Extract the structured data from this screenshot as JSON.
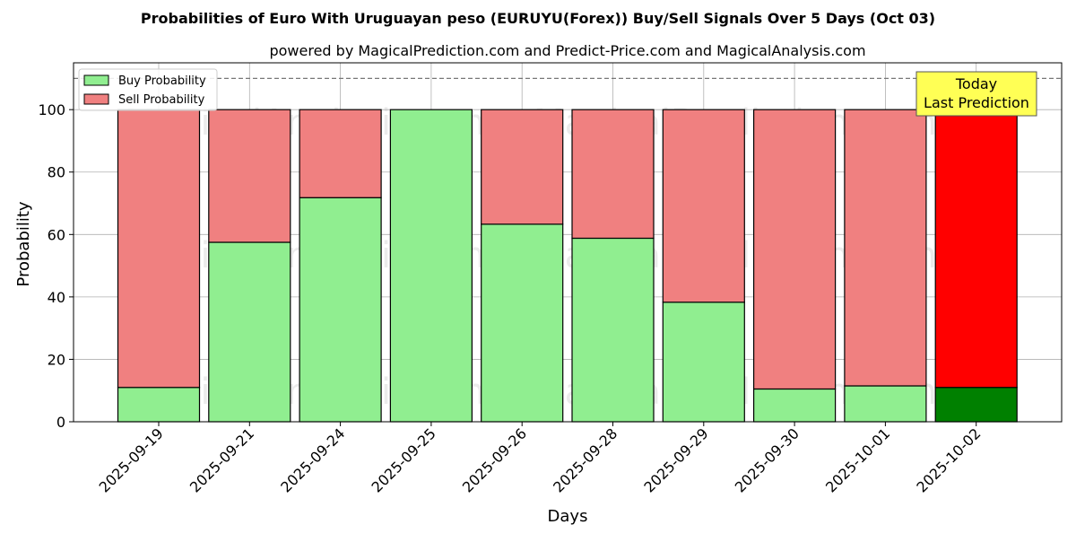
{
  "chart_data": {
    "type": "bar",
    "stacked": true,
    "title": "Probabilities of Euro With Uruguayan peso (EURUYU(Forex)) Buy/Sell Signals Over 5 Days (Oct 03)",
    "subtitle": "powered by MagicalPrediction.com and Predict-Price.com and MagicalAnalysis.com",
    "xlabel": "Days",
    "ylabel": "Probability",
    "ylim": [
      0,
      115
    ],
    "yticks": [
      0,
      20,
      40,
      60,
      80,
      100
    ],
    "grid": true,
    "legend_position": "top-left",
    "reference_line": 110,
    "categories": [
      "2025-09-19",
      "2025-09-21",
      "2025-09-24",
      "2025-09-25",
      "2025-09-26",
      "2025-09-28",
      "2025-09-29",
      "2025-09-30",
      "2025-10-01",
      "2025-10-02"
    ],
    "series": [
      {
        "name": "Buy Probability",
        "color": "#90ee90",
        "highlight_color": "#008000",
        "values": [
          11,
          57.5,
          71.8,
          100,
          63.3,
          58.8,
          38.3,
          10.5,
          11.5,
          11
        ]
      },
      {
        "name": "Sell Probability",
        "color": "#f08080",
        "highlight_color": "#ff0000",
        "values": [
          89,
          42.5,
          28.2,
          0,
          36.7,
          41.2,
          61.7,
          89.5,
          88.5,
          89
        ]
      }
    ],
    "highlight_index": 9,
    "annotation": {
      "line1": "Today",
      "line2": "Last Prediction",
      "background": "#ffff55"
    },
    "watermarks": [
      "MagicalAnalysis.com",
      "MagicalPrediction.com"
    ]
  }
}
